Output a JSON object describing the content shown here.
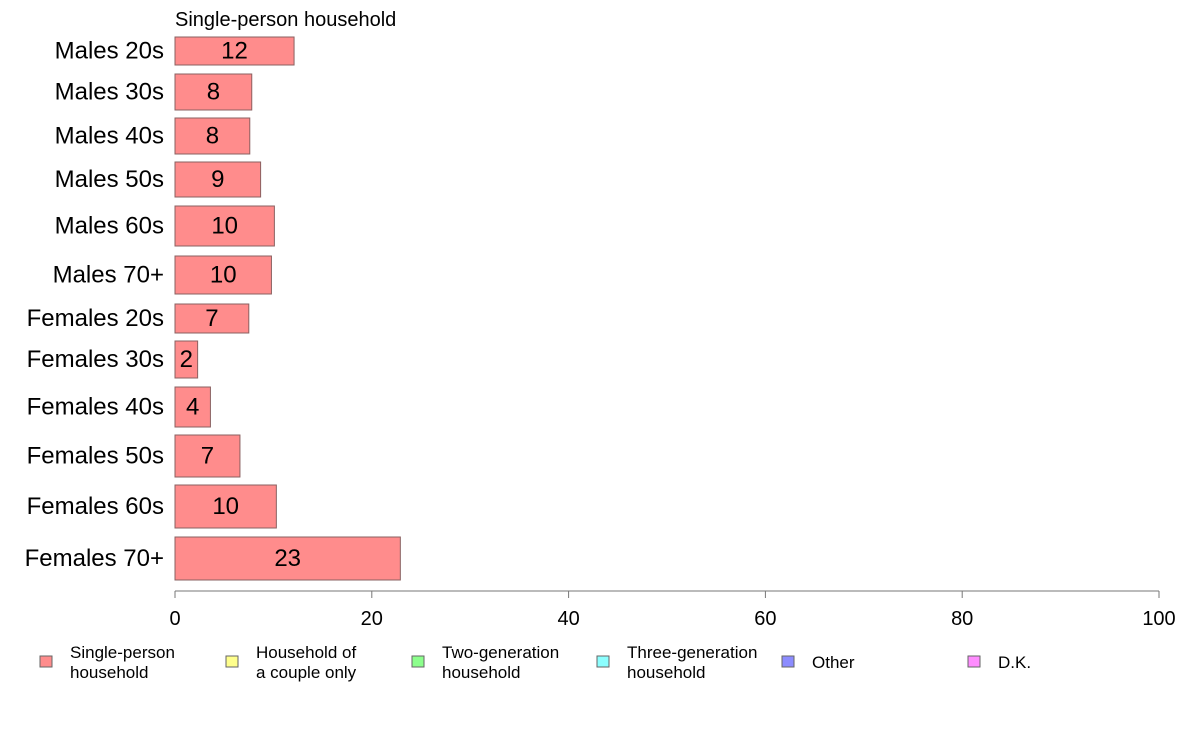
{
  "chart_data": {
    "type": "bar",
    "orientation": "horizontal",
    "panel_title": "Single-person household",
    "categories": [
      "Males 20s",
      "Males 30s",
      "Males 40s",
      "Males 50s",
      "Males 60s",
      "Males 70+",
      "Females 20s",
      "Females 30s",
      "Females 40s",
      "Females 50s",
      "Females 60s",
      "Females 70+"
    ],
    "series": [
      {
        "name": "Single-person household",
        "color": "#ff8c8c",
        "values": [
          12.1,
          7.8,
          7.6,
          8.7,
          10.1,
          9.8,
          7.5,
          2.3,
          3.6,
          6.6,
          10.3,
          22.9
        ],
        "value_labels": [
          "12",
          "8",
          "8",
          "9",
          "10",
          "10",
          "7",
          "2",
          "4",
          "7",
          "10",
          "23"
        ]
      }
    ],
    "xlim": [
      0,
      100
    ],
    "xticks": [
      "0",
      "20",
      "40",
      "60",
      "80",
      "100"
    ],
    "grid": false,
    "legend_position": "bottom",
    "legend": [
      {
        "lines": [
          "Single-person",
          "household"
        ],
        "color": "#ff8c8c"
      },
      {
        "lines": [
          "Household of",
          "a couple only"
        ],
        "color": "#ffff8c"
      },
      {
        "lines": [
          "Two-generation",
          "household"
        ],
        "color": "#8cff8c"
      },
      {
        "lines": [
          "Three-generation",
          "household"
        ],
        "color": "#8cffff"
      },
      {
        "lines": [
          "Other"
        ],
        "color": "#8c8cff"
      },
      {
        "lines": [
          "D.K."
        ],
        "color": "#ff8cff"
      }
    ]
  }
}
